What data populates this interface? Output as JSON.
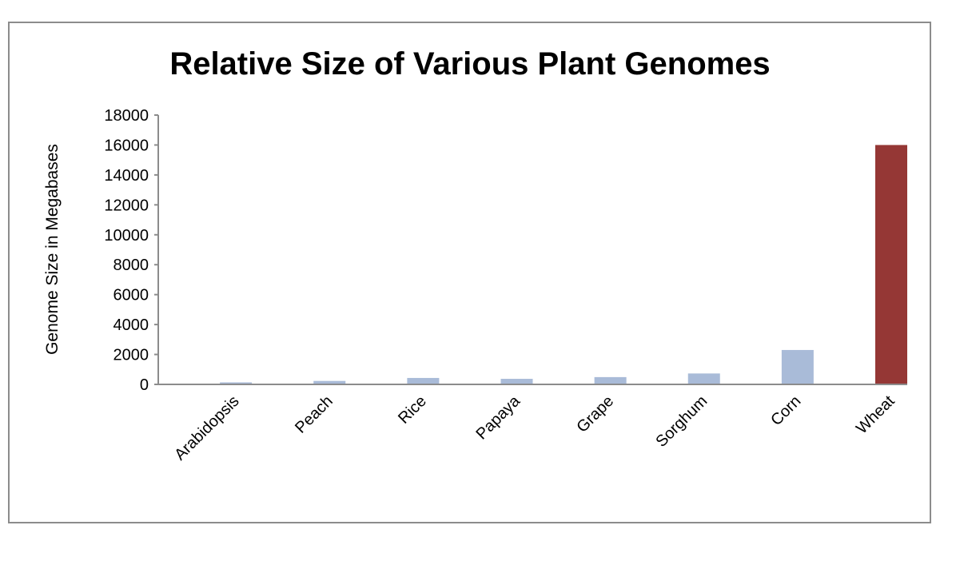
{
  "chart_data": {
    "type": "bar",
    "title": "Relative Size of Various Plant Genomes",
    "xlabel": "",
    "ylabel": "Genome Size in Megabases",
    "categories": [
      "Arabidopsis",
      "Peach",
      "Rice",
      "Papaya",
      "Grape",
      "Sorghum",
      "Corn",
      "Wheat"
    ],
    "values": [
      135,
      230,
      430,
      372,
      487,
      730,
      2300,
      16000
    ],
    "ylim": [
      0,
      18000
    ],
    "yticks": [
      0,
      2000,
      4000,
      6000,
      8000,
      10000,
      12000,
      14000,
      16000,
      18000
    ],
    "grid": false,
    "legend": "none",
    "colors": {
      "default": "#a9bbd8",
      "highlight": "#953735",
      "axis": "#8c8c8c"
    },
    "highlight_category": "Wheat"
  }
}
